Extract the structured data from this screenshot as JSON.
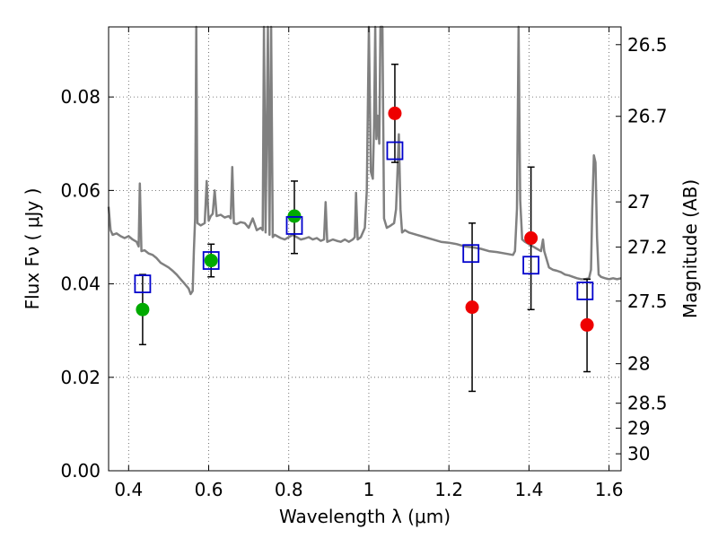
{
  "chart_data": {
    "type": "scatter",
    "xlabel": "Wavelength  λ (μm)",
    "ylabel": "Flux  Fν  ( μJy )",
    "y2label": "Magnitude (AB)",
    "xlim": [
      0.35,
      1.63
    ],
    "ylim": [
      0.0,
      0.095
    ],
    "xticks": [
      0.4,
      0.6,
      0.8,
      1.0,
      1.2,
      1.4,
      1.6
    ],
    "xtick_labels": [
      "0.4",
      "0.6",
      "0.8",
      "1",
      "1.2",
      "1.4",
      "1.6"
    ],
    "yticks": [
      0.0,
      0.02,
      0.04,
      0.06,
      0.08
    ],
    "ytick_labels": [
      "0.00",
      "0.02",
      "0.04",
      "0.06",
      "0.08"
    ],
    "y2ticks": [
      26.5,
      26.7,
      27,
      27.2,
      27.5,
      28,
      28.5,
      29,
      30
    ],
    "y2tick_labels": [
      "26.5",
      "26.7",
      "27",
      "27.2",
      "27.5",
      "28",
      "28.5",
      "29",
      "30"
    ],
    "grid": true,
    "colors": {
      "template": "#808080",
      "model_box": "#0000cc",
      "optical": "#00aa00",
      "infrared": "#ee0000",
      "errorbar": "#000000",
      "grid": "#555555"
    },
    "series": [
      {
        "marker": "open-square",
        "points": [
          {
            "x": 0.435,
            "y": 0.04
          },
          {
            "x": 0.606,
            "y": 0.045
          },
          {
            "x": 0.814,
            "y": 0.0525
          },
          {
            "x": 1.065,
            "y": 0.0685
          },
          {
            "x": 1.255,
            "y": 0.0465
          },
          {
            "x": 1.405,
            "y": 0.044
          },
          {
            "x": 1.54,
            "y": 0.0385
          }
        ]
      },
      {
        "marker": "filled-circle",
        "color": "green",
        "points": [
          {
            "x": 0.435,
            "y": 0.0345,
            "yerr_low": 0.027,
            "yerr_high": 0.042
          },
          {
            "x": 0.606,
            "y": 0.045,
            "yerr_low": 0.0415,
            "yerr_high": 0.0485
          },
          {
            "x": 0.814,
            "y": 0.0545,
            "yerr_low": 0.0465,
            "yerr_high": 0.062
          }
        ]
      },
      {
        "marker": "filled-circle",
        "color": "red",
        "points": [
          {
            "x": 1.065,
            "y": 0.0765,
            "yerr_low": 0.066,
            "yerr_high": 0.087
          },
          {
            "x": 1.258,
            "y": 0.035,
            "yerr_low": 0.017,
            "yerr_high": 0.053
          },
          {
            "x": 1.405,
            "y": 0.0498,
            "yerr_low": 0.0345,
            "yerr_high": 0.065
          },
          {
            "x": 1.545,
            "y": 0.0312,
            "yerr_low": 0.0212,
            "yerr_high": 0.041
          }
        ]
      },
      {
        "type": "line",
        "points": [
          [
            0.35,
            0.0565
          ],
          [
            0.355,
            0.0515
          ],
          [
            0.36,
            0.0505
          ],
          [
            0.37,
            0.0508
          ],
          [
            0.38,
            0.0502
          ],
          [
            0.39,
            0.0498
          ],
          [
            0.4,
            0.0502
          ],
          [
            0.41,
            0.0495
          ],
          [
            0.42,
            0.049
          ],
          [
            0.425,
            0.048
          ],
          [
            0.428,
            0.0615
          ],
          [
            0.432,
            0.047
          ],
          [
            0.44,
            0.0472
          ],
          [
            0.45,
            0.0465
          ],
          [
            0.46,
            0.0462
          ],
          [
            0.47,
            0.0455
          ],
          [
            0.48,
            0.0445
          ],
          [
            0.49,
            0.044
          ],
          [
            0.5,
            0.0435
          ],
          [
            0.51,
            0.0428
          ],
          [
            0.52,
            0.042
          ],
          [
            0.53,
            0.041
          ],
          [
            0.54,
            0.04
          ],
          [
            0.55,
            0.039
          ],
          [
            0.555,
            0.0378
          ],
          [
            0.56,
            0.0385
          ],
          [
            0.563,
            0.047
          ],
          [
            0.566,
            0.054
          ],
          [
            0.569,
            0.095
          ],
          [
            0.572,
            0.053
          ],
          [
            0.58,
            0.0525
          ],
          [
            0.59,
            0.053
          ],
          [
            0.595,
            0.062
          ],
          [
            0.6,
            0.0535
          ],
          [
            0.605,
            0.0545
          ],
          [
            0.61,
            0.055
          ],
          [
            0.615,
            0.06
          ],
          [
            0.62,
            0.0545
          ],
          [
            0.63,
            0.0548
          ],
          [
            0.64,
            0.0542
          ],
          [
            0.65,
            0.0545
          ],
          [
            0.655,
            0.054
          ],
          [
            0.659,
            0.065
          ],
          [
            0.663,
            0.053
          ],
          [
            0.67,
            0.0528
          ],
          [
            0.68,
            0.0532
          ],
          [
            0.69,
            0.053
          ],
          [
            0.7,
            0.052
          ],
          [
            0.71,
            0.054
          ],
          [
            0.72,
            0.0515
          ],
          [
            0.73,
            0.052
          ],
          [
            0.735,
            0.0515
          ],
          [
            0.738,
            0.095
          ],
          [
            0.742,
            0.051
          ],
          [
            0.748,
            0.095
          ],
          [
            0.752,
            0.0505
          ],
          [
            0.756,
            0.095
          ],
          [
            0.76,
            0.05
          ],
          [
            0.765,
            0.0505
          ],
          [
            0.78,
            0.0498
          ],
          [
            0.79,
            0.0495
          ],
          [
            0.8,
            0.05
          ],
          [
            0.81,
            0.0505
          ],
          [
            0.82,
            0.05
          ],
          [
            0.83,
            0.0495
          ],
          [
            0.84,
            0.0497
          ],
          [
            0.85,
            0.05
          ],
          [
            0.86,
            0.0495
          ],
          [
            0.87,
            0.0498
          ],
          [
            0.88,
            0.0492
          ],
          [
            0.888,
            0.0495
          ],
          [
            0.892,
            0.0575
          ],
          [
            0.896,
            0.049
          ],
          [
            0.91,
            0.0495
          ],
          [
            0.92,
            0.0492
          ],
          [
            0.93,
            0.049
          ],
          [
            0.94,
            0.0495
          ],
          [
            0.95,
            0.049
          ],
          [
            0.96,
            0.0495
          ],
          [
            0.965,
            0.05
          ],
          [
            0.968,
            0.0595
          ],
          [
            0.972,
            0.0495
          ],
          [
            0.98,
            0.05
          ],
          [
            0.99,
            0.052
          ],
          [
            0.995,
            0.06
          ],
          [
            1.0,
            0.095
          ],
          [
            1.005,
            0.064
          ],
          [
            1.01,
            0.0625
          ],
          [
            1.013,
            0.074
          ],
          [
            1.016,
            0.095
          ],
          [
            1.019,
            0.071
          ],
          [
            1.022,
            0.076
          ],
          [
            1.026,
            0.07
          ],
          [
            1.029,
            0.095
          ],
          [
            1.034,
            0.095
          ],
          [
            1.038,
            0.054
          ],
          [
            1.045,
            0.052
          ],
          [
            1.055,
            0.0525
          ],
          [
            1.063,
            0.053
          ],
          [
            1.068,
            0.056
          ],
          [
            1.072,
            0.065
          ],
          [
            1.075,
            0.072
          ],
          [
            1.079,
            0.056
          ],
          [
            1.083,
            0.051
          ],
          [
            1.09,
            0.0515
          ],
          [
            1.1,
            0.051
          ],
          [
            1.12,
            0.0505
          ],
          [
            1.14,
            0.05
          ],
          [
            1.16,
            0.0495
          ],
          [
            1.18,
            0.049
          ],
          [
            1.2,
            0.0488
          ],
          [
            1.22,
            0.0485
          ],
          [
            1.24,
            0.048
          ],
          [
            1.26,
            0.0478
          ],
          [
            1.28,
            0.0475
          ],
          [
            1.3,
            0.047
          ],
          [
            1.32,
            0.0468
          ],
          [
            1.34,
            0.0465
          ],
          [
            1.36,
            0.0462
          ],
          [
            1.365,
            0.047
          ],
          [
            1.37,
            0.056
          ],
          [
            1.374,
            0.095
          ],
          [
            1.378,
            0.058
          ],
          [
            1.383,
            0.0495
          ],
          [
            1.39,
            0.049
          ],
          [
            1.4,
            0.0485
          ],
          [
            1.41,
            0.048
          ],
          [
            1.42,
            0.0475
          ],
          [
            1.43,
            0.047
          ],
          [
            1.435,
            0.0495
          ],
          [
            1.438,
            0.047
          ],
          [
            1.45,
            0.0435
          ],
          [
            1.46,
            0.043
          ],
          [
            1.47,
            0.0428
          ],
          [
            1.48,
            0.0425
          ],
          [
            1.49,
            0.042
          ],
          [
            1.5,
            0.0418
          ],
          [
            1.51,
            0.0415
          ],
          [
            1.52,
            0.0412
          ],
          [
            1.53,
            0.041
          ],
          [
            1.54,
            0.041
          ],
          [
            1.55,
            0.0412
          ],
          [
            1.555,
            0.043
          ],
          [
            1.558,
            0.056
          ],
          [
            1.562,
            0.0675
          ],
          [
            1.566,
            0.066
          ],
          [
            1.57,
            0.05
          ],
          [
            1.574,
            0.042
          ],
          [
            1.58,
            0.0415
          ],
          [
            1.59,
            0.0412
          ],
          [
            1.6,
            0.041
          ],
          [
            1.61,
            0.0412
          ],
          [
            1.62,
            0.041
          ],
          [
            1.63,
            0.0412
          ]
        ]
      }
    ]
  }
}
